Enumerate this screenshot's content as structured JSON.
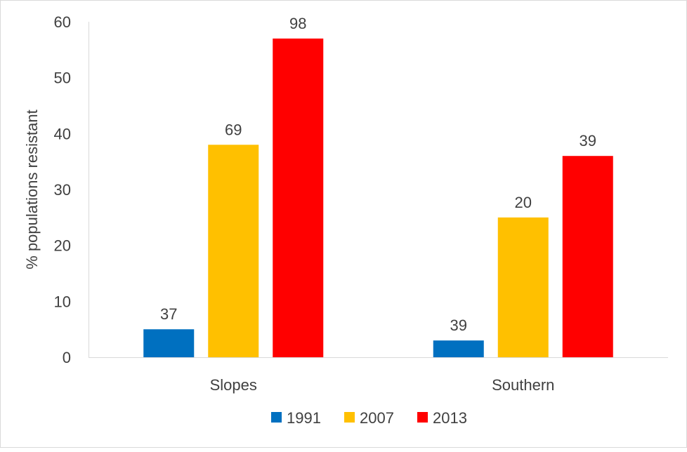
{
  "chart_data": {
    "type": "bar",
    "title": "",
    "xlabel": "",
    "ylabel": "% populations resistant",
    "ylim": [
      0,
      60
    ],
    "yticks": [
      0,
      10,
      20,
      30,
      40,
      50,
      60
    ],
    "grid": false,
    "legend_position": "bottom",
    "categories": [
      "Slopes",
      "Southern"
    ],
    "series": [
      {
        "name": "1991",
        "color": "#0070C0",
        "values": [
          5,
          3
        ],
        "data_labels": [
          "37",
          "39"
        ]
      },
      {
        "name": "2007",
        "color": "#FFC000",
        "values": [
          38,
          25
        ],
        "data_labels": [
          "69",
          "20"
        ]
      },
      {
        "name": "2013",
        "color": "#FF0000",
        "values": [
          57,
          36
        ],
        "data_labels": [
          "98",
          "39"
        ]
      }
    ]
  }
}
